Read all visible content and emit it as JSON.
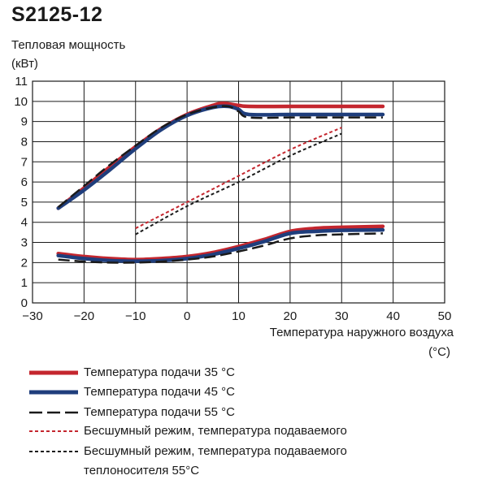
{
  "chart_data": {
    "type": "line",
    "title": "S2125-12",
    "ylabel_line1": "Тепловая мощность",
    "ylabel_line2": "(кВт)",
    "xlabel_line1": "Температура наружного воздуха",
    "xlabel_line2": "(°C)",
    "xlim": [
      -30,
      50
    ],
    "ylim": [
      0,
      11
    ],
    "xticks": [
      -30,
      -20,
      -10,
      0,
      10,
      20,
      30,
      40,
      50
    ],
    "yticks": [
      0,
      1,
      2,
      3,
      4,
      5,
      6,
      7,
      8,
      9,
      10,
      11
    ],
    "xtick_labels": [
      "−30",
      "−20",
      "−10",
      "0",
      "10",
      "20",
      "30",
      "40",
      "50"
    ],
    "ytick_labels": [
      "0",
      "1",
      "2",
      "3",
      "4",
      "5",
      "6",
      "7",
      "8",
      "9",
      "10",
      "11"
    ],
    "grid": true,
    "legend_position": "bottom",
    "series": [
      {
        "name": "Температура подачи 35 °C",
        "color": "#c4262e",
        "style": "solid-thick",
        "x": [
          -25,
          -20,
          -15,
          -10,
          -5,
          0,
          5,
          7,
          10,
          12,
          20,
          30,
          38
        ],
        "y": [
          4.7,
          5.7,
          6.75,
          7.75,
          8.65,
          9.35,
          9.8,
          9.9,
          9.8,
          9.75,
          9.75,
          9.75,
          9.75
        ]
      },
      {
        "name": "Температура подачи 45 °C",
        "color": "#1f3e7c",
        "style": "solid-thick",
        "x": [
          -25,
          -20,
          -15,
          -10,
          -5,
          0,
          5,
          8,
          10,
          12,
          20,
          30,
          38
        ],
        "y": [
          4.7,
          5.6,
          6.6,
          7.65,
          8.6,
          9.3,
          9.7,
          9.75,
          9.6,
          9.35,
          9.35,
          9.35,
          9.35
        ]
      },
      {
        "name": "Температура подачи 55 °C",
        "color": "#1a1a1a",
        "style": "dashed",
        "x": [
          -25,
          -20,
          -15,
          -10,
          -5,
          0,
          5,
          8,
          10,
          12,
          20,
          30,
          38
        ],
        "y": [
          4.75,
          5.8,
          6.85,
          7.8,
          8.7,
          9.35,
          9.7,
          9.75,
          9.5,
          9.2,
          9.2,
          9.2,
          9.2
        ]
      },
      {
        "name": "Бесшумный режим, температура подаваемого",
        "color": "#c4262e",
        "style": "dotted",
        "x": [
          -10,
          0,
          10,
          20,
          30
        ],
        "y": [
          3.7,
          5.0,
          6.3,
          7.6,
          8.7
        ]
      },
      {
        "name": "Бесшумный режим, температура подаваемого теплоносителя 55°C",
        "color": "#1a1a1a",
        "style": "dotted",
        "x": [
          -10,
          0,
          10,
          20,
          30
        ],
        "y": [
          3.4,
          4.8,
          6.0,
          7.3,
          8.4
        ]
      },
      {
        "name": "Температура подачи 35 °C (2)",
        "color": "#c4262e",
        "style": "solid-thick",
        "x": [
          -25,
          -20,
          -15,
          -10,
          -5,
          0,
          5,
          10,
          15,
          20,
          25,
          30,
          38
        ],
        "y": [
          2.45,
          2.3,
          2.2,
          2.15,
          2.2,
          2.3,
          2.5,
          2.8,
          3.15,
          3.55,
          3.7,
          3.75,
          3.8
        ]
      },
      {
        "name": "Температура подачи 45 °C (2)",
        "color": "#1f3e7c",
        "style": "solid-thick",
        "x": [
          -25,
          -20,
          -15,
          -10,
          -5,
          0,
          5,
          10,
          15,
          20,
          25,
          30,
          38
        ],
        "y": [
          2.35,
          2.2,
          2.1,
          2.07,
          2.1,
          2.2,
          2.4,
          2.7,
          3.05,
          3.45,
          3.55,
          3.6,
          3.62
        ]
      },
      {
        "name": "Температура подачи 55 °C (2)",
        "color": "#1a1a1a",
        "style": "dashed",
        "x": [
          -25,
          -20,
          -15,
          -10,
          -5,
          0,
          5,
          10,
          15,
          20,
          25,
          30,
          38
        ],
        "y": [
          2.15,
          2.05,
          2.0,
          2.0,
          2.05,
          2.15,
          2.3,
          2.55,
          2.85,
          3.2,
          3.35,
          3.4,
          3.45
        ]
      }
    ]
  },
  "legend": [
    {
      "label": "Температура подачи 35 °C",
      "color": "#c4262e",
      "style": "solid-thick"
    },
    {
      "label": "Температура подачи 45 °C",
      "color": "#1f3e7c",
      "style": "solid-thick"
    },
    {
      "label": "Температура подачи 55 °C",
      "color": "#1a1a1a",
      "style": "dashed"
    },
    {
      "label": "Бесшумный режим, температура подаваемого",
      "color": "#c4262e",
      "style": "dotted"
    },
    {
      "label": "Бесшумный режим, температура подаваемого",
      "color": "#1a1a1a",
      "style": "dotted"
    },
    {
      "label": "теплоносителя 55°C",
      "color": "",
      "style": "none"
    }
  ]
}
